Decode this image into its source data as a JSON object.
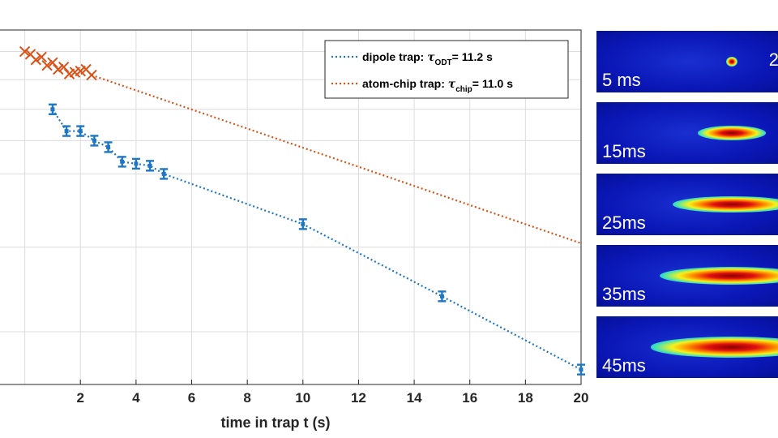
{
  "chart_data": {
    "type": "scatter",
    "title": "",
    "xlabel": "time in trap t (s)",
    "ylabel": "",
    "xlim": [
      -0.95,
      20
    ],
    "log_y": true,
    "grid": true,
    "legend_position": "top-right",
    "x_ticks": [
      "2",
      "4",
      "6",
      "8",
      "10",
      "12",
      "14",
      "16",
      "18",
      "20"
    ],
    "series": [
      {
        "name": "dipole trap",
        "legend_parts": [
          "dipole trap: ",
          "τ",
          "ODT",
          "= 11.2 s"
        ],
        "color": "#1f77c4",
        "marker": "errorbar",
        "x": [
          1.0,
          1.5,
          2.0,
          2.5,
          3.0,
          3.5,
          4.0,
          4.5,
          5.0,
          10.0,
          15.0,
          20.0
        ],
        "y": [
          0.9,
          0.865,
          0.865,
          0.85,
          0.84,
          0.818,
          0.815,
          0.812,
          0.8,
          0.73,
          0.64,
          0.56
        ],
        "fit": {
          "tau": 11.2,
          "x_start": 1.0,
          "x_end": 20.0
        }
      },
      {
        "name": "atom-chip trap",
        "legend_parts": [
          "atom-chip trap: ",
          "τ",
          "chip",
          "= 11.0 s"
        ],
        "color": "#d95319",
        "marker": "x",
        "x": [
          0.0,
          0.2,
          0.4,
          0.6,
          0.8,
          1.0,
          1.2,
          1.4,
          1.6,
          1.8,
          2.0,
          2.2,
          2.4
        ],
        "y": [
          1.0,
          0.995,
          0.985,
          0.99,
          0.975,
          0.98,
          0.968,
          0.972,
          0.96,
          0.963,
          0.965,
          0.968,
          0.958
        ],
        "fit": {
          "tau": 11.0,
          "x_start": 0.0,
          "x_end": 20.0
        }
      }
    ]
  },
  "panels": [
    {
      "label": "5 ms",
      "width": 0.06,
      "height": 0.16,
      "edge": "2"
    },
    {
      "label": "15ms",
      "width": 0.4,
      "height": 0.24,
      "edge": ""
    },
    {
      "label": "25ms",
      "width": 0.7,
      "height": 0.28,
      "edge": ""
    },
    {
      "label": "35ms",
      "width": 0.85,
      "height": 0.3,
      "edge": ""
    },
    {
      "label": "45ms",
      "width": 0.95,
      "height": 0.34,
      "edge": ""
    }
  ]
}
